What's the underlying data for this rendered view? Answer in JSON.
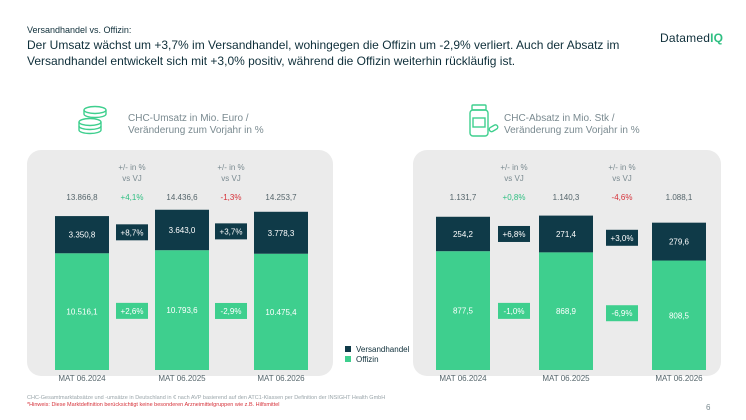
{
  "header": {
    "kicker": "Versandhandel vs. Offizin:",
    "headline": "Der Umsatz wächst um +3,7% im Versandhandel, wohingegen die Offizin um -2,9% verliert. Auch der Absatz im Versandhandel entwickelt sich mit +3,0% positiv, während die Offizin weiterhin rückläufig ist."
  },
  "logo": {
    "part1": "Datamed",
    "part2": "IQ"
  },
  "colors": {
    "versand": "#0f3a48",
    "offizin": "#3ecf8e",
    "positive": "#2fbf82",
    "negative": "#d6323a",
    "panel": "#ebebeb"
  },
  "icons": {
    "left": "coins-icon",
    "right": "medicine-bottle-icon"
  },
  "legend": {
    "versand": "Versandhandel",
    "offizin": "Offizin"
  },
  "footnotes": {
    "line1": "CHC-Gesamtmarktabsätze und -umsätze in Deutschland in € nach AVP basierend auf den ATC1-Klassen per Definition der INSIGHT Health GmbH",
    "line2": "*Hinweis: Diese Marktdefinition berücksichtigt keine besonderen Arzneimittelgruppen wie z.B. Hilfsmittel"
  },
  "page_number": "6",
  "chart_data": [
    {
      "type": "bar",
      "stacked": true,
      "title": "CHC-Umsatz in Mio. Euro / Veränderung zum Vorjahr in %",
      "categories": [
        "MAT 06.2024",
        "MAT 06.2025",
        "MAT 06.2026"
      ],
      "totals": [
        "13.866,8",
        "14.436,6",
        "14.253,7"
      ],
      "series": [
        {
          "name": "Offizin",
          "values": [
            10516.1,
            10793.6,
            10475.4
          ],
          "labels": [
            "10.516,1",
            "10.793,6",
            "10.475,4"
          ]
        },
        {
          "name": "Versandhandel",
          "values": [
            3350.8,
            3643.0,
            3778.3
          ],
          "labels": [
            "3.350,8",
            "3.643,0",
            "3.778,3"
          ]
        }
      ],
      "change_header": "+/- in %\nvs VJ",
      "total_changes": [
        "+4,1%",
        "-1,3%"
      ],
      "versand_changes": [
        "+8,7%",
        "+3,7%"
      ],
      "offizin_changes": [
        "+2,6%",
        "-2,9%"
      ],
      "ylim": [
        0,
        14500
      ]
    },
    {
      "type": "bar",
      "stacked": true,
      "title": "CHC-Absatz in Mio. Stk / Veränderung zum Vorjahr in %",
      "categories": [
        "MAT 06.2024",
        "MAT 06.2025",
        "MAT 06.2026"
      ],
      "totals": [
        "1.131,7",
        "1.140,3",
        "1.088,1"
      ],
      "series": [
        {
          "name": "Offizin",
          "values": [
            877.5,
            868.9,
            808.5
          ],
          "labels": [
            "877,5",
            "868,9",
            "808,5"
          ]
        },
        {
          "name": "Versandhandel",
          "values": [
            254.2,
            271.4,
            279.6
          ],
          "labels": [
            "254,2",
            "271,4",
            "279,6"
          ]
        }
      ],
      "change_header": "+/- in %\nvs VJ",
      "total_changes": [
        "+0,8%",
        "-4,6%"
      ],
      "versand_changes": [
        "+6,8%",
        "+3,0%"
      ],
      "offizin_changes": [
        "-1,0%",
        "-6,9%"
      ],
      "ylim": [
        0,
        1140
      ]
    }
  ]
}
